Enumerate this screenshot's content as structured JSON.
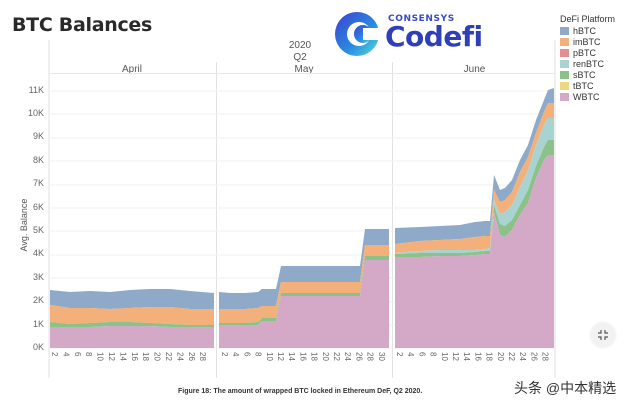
{
  "header": {
    "title": "BTC Balances",
    "year": "2020",
    "quarter": "Q2",
    "months": [
      "April",
      "May",
      "June"
    ]
  },
  "logo": {
    "sub": "CONSENSYS",
    "main": "Codefi"
  },
  "legend": {
    "title": "DeFi Platform",
    "items": [
      {
        "label": "hBTC",
        "color": "#8fa9c9"
      },
      {
        "label": "imBTC",
        "color": "#f4b07a"
      },
      {
        "label": "pBTC",
        "color": "#e38f8f"
      },
      {
        "label": "renBTC",
        "color": "#a9d3d1"
      },
      {
        "label": "sBTC",
        "color": "#8cc18a"
      },
      {
        "label": "tBTC",
        "color": "#f0d77f"
      },
      {
        "label": "WBTC",
        "color": "#d3a9c7"
      }
    ]
  },
  "y_axis": {
    "label": "Avg. Balance",
    "ticks": [
      "0K",
      "1K",
      "2K",
      "3K",
      "4K",
      "5K",
      "6K",
      "7K",
      "8K",
      "9K",
      "10K",
      "11K"
    ]
  },
  "x_axis": {
    "april_ticks": [
      "2",
      "4",
      "6",
      "8",
      "10",
      "12",
      "14",
      "16",
      "18",
      "20",
      "22",
      "24",
      "26",
      "28"
    ],
    "may_ticks": [
      "2",
      "4",
      "6",
      "8",
      "10",
      "12",
      "14",
      "16",
      "18",
      "20",
      "22",
      "24",
      "26",
      "28",
      "30"
    ],
    "june_ticks": [
      "2",
      "4",
      "6",
      "8",
      "10",
      "12",
      "14",
      "16",
      "18",
      "20",
      "22",
      "24",
      "26",
      "28"
    ]
  },
  "caption": "Figure 18: The amount of wrapped BTC locked in Ethereum DeF, Q2 2020.",
  "watermark": "头条 @中本精选",
  "fullscreen_icon": "collapse-arrows-icon",
  "chart_data": {
    "type": "area",
    "stacked": true,
    "title": "BTC Balances",
    "xlabel": "2020 Q2 (daily, April / May / June)",
    "ylabel": "Avg. Balance",
    "ylim": [
      0,
      11000
    ],
    "grid": true,
    "legend_position": "right",
    "x": [
      "Apr 1",
      "Apr 8",
      "Apr 15",
      "Apr 22",
      "Apr 30",
      "May 1",
      "May 8",
      "May 11",
      "May 12",
      "May 21",
      "May 22",
      "May 31",
      "Jun 1",
      "Jun 8",
      "Jun 15",
      "Jun 18",
      "Jun 19",
      "Jun 20",
      "Jun 22",
      "Jun 24",
      "Jun 26",
      "Jun 28",
      "Jun 29"
    ],
    "series": [
      {
        "name": "WBTC",
        "values": [
          900,
          950,
          1000,
          950,
          950,
          950,
          1000,
          1100,
          2300,
          2300,
          3900,
          3900,
          3900,
          3950,
          4000,
          4150,
          5800,
          4900,
          5500,
          6300,
          7300,
          8100,
          8200
        ]
      },
      {
        "name": "tBTC",
        "values": [
          0,
          0,
          0,
          0,
          0,
          0,
          0,
          0,
          0,
          0,
          0,
          0,
          0,
          0,
          0,
          0,
          0,
          0,
          0,
          0,
          0,
          0,
          0
        ]
      },
      {
        "name": "sBTC",
        "values": [
          250,
          200,
          200,
          150,
          150,
          150,
          150,
          150,
          150,
          150,
          150,
          150,
          150,
          150,
          150,
          150,
          300,
          400,
          500,
          500,
          550,
          600,
          600
        ]
      },
      {
        "name": "renBTC",
        "values": [
          0,
          0,
          0,
          0,
          0,
          0,
          0,
          0,
          0,
          0,
          0,
          0,
          0,
          0,
          50,
          100,
          200,
          400,
          600,
          800,
          900,
          900,
          900
        ]
      },
      {
        "name": "pBTC",
        "values": [
          0,
          0,
          0,
          0,
          0,
          0,
          0,
          0,
          0,
          0,
          0,
          0,
          0,
          0,
          0,
          0,
          0,
          0,
          0,
          0,
          0,
          0,
          0
        ]
      },
      {
        "name": "imBTC",
        "values": [
          750,
          750,
          800,
          750,
          650,
          700,
          650,
          600,
          500,
          500,
          450,
          450,
          450,
          450,
          450,
          550,
          500,
          550,
          600,
          600,
          650,
          650,
          650
        ]
      },
      {
        "name": "hBTC",
        "values": [
          750,
          750,
          750,
          700,
          700,
          750,
          700,
          650,
          700,
          700,
          700,
          700,
          700,
          750,
          750,
          750,
          800,
          700,
          700,
          700,
          700,
          700,
          700
        ]
      }
    ]
  }
}
